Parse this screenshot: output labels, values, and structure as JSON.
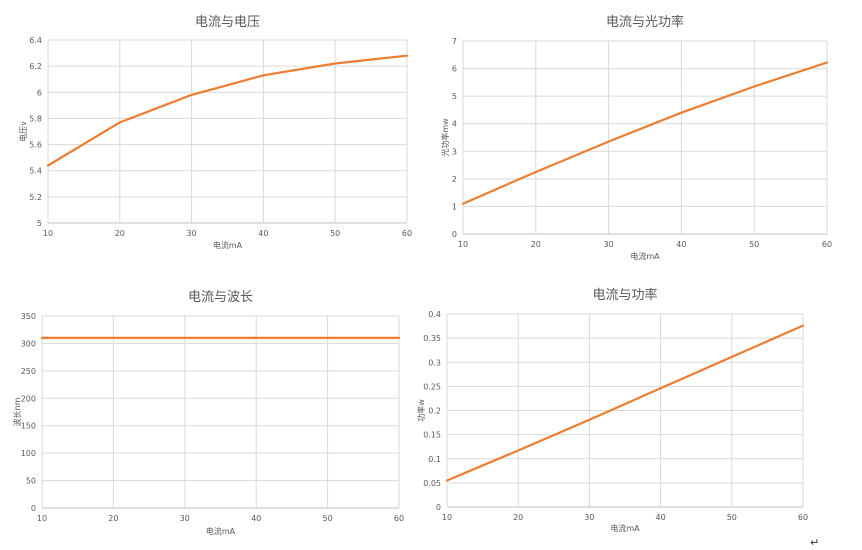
{
  "colors": {
    "series": "#ed7d31",
    "grid": "#d9d9d9",
    "text": "#595959"
  },
  "corner_mark": "↵",
  "chart_data": [
    {
      "type": "line",
      "title": "电流与电压",
      "xlabel": "电流mA",
      "ylabel": "电压v",
      "x": [
        10,
        20,
        30,
        40,
        50,
        60
      ],
      "xlim": [
        10,
        60
      ],
      "ylim": [
        5,
        6.4
      ],
      "xticks": [
        "10",
        "20",
        "30",
        "40",
        "50",
        "60"
      ],
      "yticks": [
        "5",
        "5.2",
        "5.4",
        "5.6",
        "5.8",
        "6",
        "6.2",
        "6.4"
      ],
      "series": [
        {
          "values": [
            5.44,
            5.77,
            5.98,
            6.13,
            6.22,
            6.28
          ]
        }
      ],
      "grid": true
    },
    {
      "type": "line",
      "title": "电流与光功率",
      "xlabel": "电流mA",
      "ylabel": "光功率mw",
      "x": [
        10,
        20,
        30,
        40,
        50,
        60
      ],
      "xlim": [
        10,
        60
      ],
      "ylim": [
        0,
        7
      ],
      "xticks": [
        "10",
        "20",
        "30",
        "40",
        "50",
        "60"
      ],
      "yticks": [
        "0",
        "1",
        "2",
        "3",
        "4",
        "5",
        "6",
        "7"
      ],
      "series": [
        {
          "values": [
            1.1,
            2.25,
            3.35,
            4.4,
            5.35,
            6.22
          ]
        }
      ],
      "grid": true
    },
    {
      "type": "line",
      "title": "电流与波长",
      "xlabel": "电流mA",
      "ylabel": "波长nm",
      "x": [
        10,
        20,
        30,
        40,
        50,
        60
      ],
      "xlim": [
        10,
        60
      ],
      "ylim": [
        0,
        350
      ],
      "xticks": [
        "10",
        "20",
        "30",
        "40",
        "50",
        "60"
      ],
      "yticks": [
        "0",
        "50",
        "100",
        "150",
        "200",
        "250",
        "300",
        "350"
      ],
      "series": [
        {
          "values": [
            310,
            310,
            310,
            310,
            310,
            310
          ]
        }
      ],
      "grid": true
    },
    {
      "type": "line",
      "title": "电流与功率",
      "xlabel": "电流mA",
      "ylabel": "功率w",
      "x": [
        10,
        20,
        30,
        40,
        50,
        60
      ],
      "xlim": [
        10,
        60
      ],
      "ylim": [
        0,
        0.4
      ],
      "xticks": [
        "10",
        "20",
        "30",
        "40",
        "50",
        "60"
      ],
      "yticks": [
        "0",
        "0.05",
        "0.1",
        "0.15",
        "0.2",
        "0.25",
        "0.3",
        "0.35",
        "0.4"
      ],
      "series": [
        {
          "values": [
            0.055,
            0.117,
            0.181,
            0.246,
            0.311,
            0.376
          ]
        }
      ],
      "grid": true
    }
  ]
}
